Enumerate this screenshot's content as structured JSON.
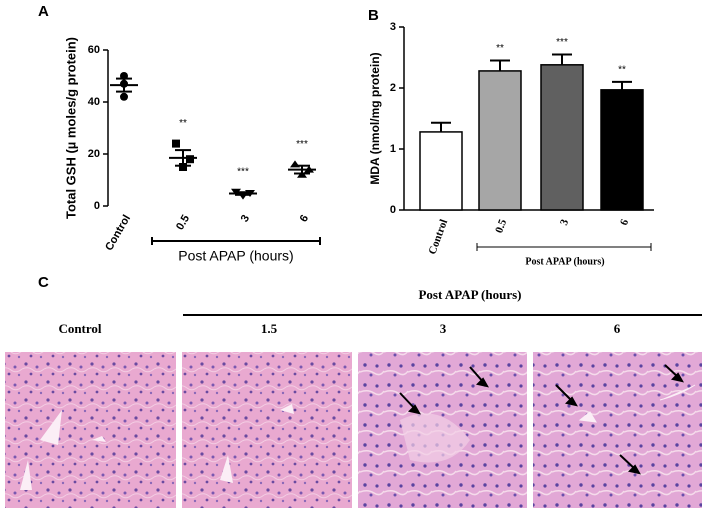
{
  "chart_data": [
    {
      "type": "dot",
      "panel": "A",
      "y_label": "Total GSH (µ moles/g protein)",
      "x_label": "Post APAP (hours)",
      "categories": [
        "Control",
        "0.5",
        "3",
        "6"
      ],
      "points": [
        [
          50,
          47,
          42
        ],
        [
          24,
          18,
          15
        ],
        [
          5.5,
          5,
          4
        ],
        [
          16,
          14,
          12
        ]
      ],
      "means": [
        46.5,
        18.5,
        4.8,
        14
      ],
      "errors": [
        2.5,
        3,
        0.5,
        1.5
      ],
      "significance": [
        null,
        "**",
        "***",
        "***"
      ],
      "color": "#000000",
      "ylim": [
        0,
        60
      ],
      "yticks": [
        0,
        20,
        40,
        60
      ]
    },
    {
      "type": "bar",
      "panel": "B",
      "y_label": "MDA (nmol/mg protein)",
      "x_label": "Post APAP (hours)",
      "categories": [
        "Control",
        "0.5",
        "3",
        "6"
      ],
      "values": [
        1.28,
        2.28,
        2.38,
        1.97
      ],
      "errors": [
        0.15,
        0.17,
        0.17,
        0.13
      ],
      "colors": [
        "#ffffff",
        "#a6a6a6",
        "#606060",
        "#000000"
      ],
      "significance": [
        null,
        "**",
        "***",
        "**"
      ],
      "ylim": [
        0,
        3
      ],
      "yticks": [
        0,
        1,
        2,
        3
      ]
    }
  ],
  "panel_c": {
    "panel": "C",
    "header": "Post APAP (hours)",
    "labels": [
      "Control",
      "1.5",
      "3",
      "6"
    ]
  }
}
